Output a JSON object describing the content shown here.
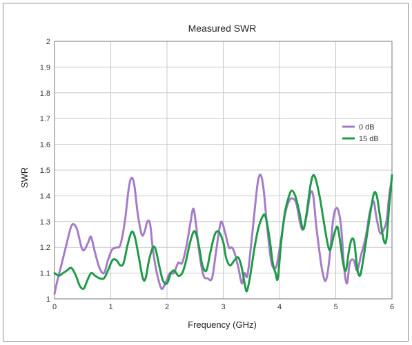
{
  "chart_data": {
    "type": "line",
    "title": "Measured SWR",
    "xlabel": "Frequency (GHz)",
    "ylabel": "SWR",
    "xlim": [
      0,
      6
    ],
    "ylim": [
      1,
      2
    ],
    "xticks": [
      "0",
      "1",
      "2",
      "3",
      "4",
      "5",
      "6"
    ],
    "yticks": [
      "1",
      "1.1",
      "1.2",
      "1.3",
      "1.4",
      "1.5",
      "1.6",
      "1.7",
      "1.8",
      "1.9",
      "2"
    ],
    "grid": true,
    "legend_position": "right",
    "series": [
      {
        "name": "0 dB",
        "color": "#a57cc6",
        "points": [
          [
            0.0,
            1.02
          ],
          [
            0.05,
            1.07
          ],
          [
            0.12,
            1.13
          ],
          [
            0.2,
            1.2
          ],
          [
            0.28,
            1.27
          ],
          [
            0.33,
            1.29
          ],
          [
            0.4,
            1.27
          ],
          [
            0.48,
            1.2
          ],
          [
            0.53,
            1.19
          ],
          [
            0.6,
            1.22
          ],
          [
            0.65,
            1.24
          ],
          [
            0.72,
            1.18
          ],
          [
            0.8,
            1.12
          ],
          [
            0.88,
            1.1
          ],
          [
            0.95,
            1.15
          ],
          [
            1.02,
            1.19
          ],
          [
            1.1,
            1.2
          ],
          [
            1.17,
            1.21
          ],
          [
            1.25,
            1.3
          ],
          [
            1.32,
            1.43
          ],
          [
            1.37,
            1.47
          ],
          [
            1.42,
            1.44
          ],
          [
            1.48,
            1.33
          ],
          [
            1.55,
            1.25
          ],
          [
            1.6,
            1.26
          ],
          [
            1.65,
            1.3
          ],
          [
            1.7,
            1.29
          ],
          [
            1.75,
            1.19
          ],
          [
            1.82,
            1.1
          ],
          [
            1.9,
            1.04
          ],
          [
            1.97,
            1.06
          ],
          [
            2.05,
            1.1
          ],
          [
            2.12,
            1.1
          ],
          [
            2.2,
            1.14
          ],
          [
            2.27,
            1.14
          ],
          [
            2.35,
            1.21
          ],
          [
            2.42,
            1.3
          ],
          [
            2.47,
            1.35
          ],
          [
            2.52,
            1.28
          ],
          [
            2.58,
            1.17
          ],
          [
            2.65,
            1.09
          ],
          [
            2.72,
            1.08
          ],
          [
            2.8,
            1.08
          ],
          [
            2.87,
            1.18
          ],
          [
            2.93,
            1.27
          ],
          [
            2.97,
            1.3
          ],
          [
            3.03,
            1.26
          ],
          [
            3.1,
            1.2
          ],
          [
            3.15,
            1.2
          ],
          [
            3.2,
            1.18
          ],
          [
            3.27,
            1.12
          ],
          [
            3.33,
            1.06
          ],
          [
            3.38,
            1.1
          ],
          [
            3.43,
            1.09
          ],
          [
            3.5,
            1.22
          ],
          [
            3.57,
            1.37
          ],
          [
            3.62,
            1.46
          ],
          [
            3.67,
            1.48
          ],
          [
            3.72,
            1.42
          ],
          [
            3.78,
            1.28
          ],
          [
            3.85,
            1.15
          ],
          [
            3.9,
            1.12
          ],
          [
            3.95,
            1.13
          ],
          [
            4.02,
            1.22
          ],
          [
            4.1,
            1.33
          ],
          [
            4.17,
            1.38
          ],
          [
            4.23,
            1.39
          ],
          [
            4.3,
            1.37
          ],
          [
            4.37,
            1.29
          ],
          [
            4.42,
            1.27
          ],
          [
            4.48,
            1.32
          ],
          [
            4.55,
            1.41
          ],
          [
            4.6,
            1.4
          ],
          [
            4.65,
            1.29
          ],
          [
            4.7,
            1.2
          ],
          [
            4.76,
            1.11
          ],
          [
            4.82,
            1.07
          ],
          [
            4.88,
            1.14
          ],
          [
            4.95,
            1.3
          ],
          [
            5.0,
            1.35
          ],
          [
            5.05,
            1.34
          ],
          [
            5.1,
            1.27
          ],
          [
            5.15,
            1.12
          ],
          [
            5.2,
            1.06
          ],
          [
            5.25,
            1.14
          ],
          [
            5.32,
            1.15
          ],
          [
            5.38,
            1.11
          ],
          [
            5.45,
            1.17
          ],
          [
            5.5,
            1.21
          ],
          [
            5.55,
            1.26
          ],
          [
            5.6,
            1.33
          ],
          [
            5.67,
            1.38
          ],
          [
            5.72,
            1.32
          ],
          [
            5.78,
            1.26
          ],
          [
            5.83,
            1.26
          ],
          [
            5.9,
            1.3
          ],
          [
            5.95,
            1.4
          ],
          [
            6.0,
            1.47
          ]
        ]
      },
      {
        "name": "15 dB",
        "color": "#1f9a49",
        "points": [
          [
            0.0,
            1.1
          ],
          [
            0.08,
            1.09
          ],
          [
            0.15,
            1.1
          ],
          [
            0.22,
            1.11
          ],
          [
            0.3,
            1.12
          ],
          [
            0.38,
            1.09
          ],
          [
            0.45,
            1.05
          ],
          [
            0.52,
            1.04
          ],
          [
            0.58,
            1.07
          ],
          [
            0.65,
            1.1
          ],
          [
            0.72,
            1.09
          ],
          [
            0.8,
            1.08
          ],
          [
            0.88,
            1.08
          ],
          [
            0.95,
            1.11
          ],
          [
            1.03,
            1.15
          ],
          [
            1.1,
            1.15
          ],
          [
            1.17,
            1.13
          ],
          [
            1.23,
            1.14
          ],
          [
            1.3,
            1.21
          ],
          [
            1.37,
            1.26
          ],
          [
            1.43,
            1.24
          ],
          [
            1.5,
            1.16
          ],
          [
            1.57,
            1.08
          ],
          [
            1.62,
            1.08
          ],
          [
            1.68,
            1.15
          ],
          [
            1.75,
            1.2
          ],
          [
            1.8,
            1.19
          ],
          [
            1.87,
            1.12
          ],
          [
            1.93,
            1.07
          ],
          [
            2.0,
            1.06
          ],
          [
            2.07,
            1.1
          ],
          [
            2.13,
            1.11
          ],
          [
            2.2,
            1.09
          ],
          [
            2.27,
            1.1
          ],
          [
            2.33,
            1.14
          ],
          [
            2.4,
            1.21
          ],
          [
            2.47,
            1.26
          ],
          [
            2.52,
            1.25
          ],
          [
            2.58,
            1.19
          ],
          [
            2.63,
            1.13
          ],
          [
            2.7,
            1.11
          ],
          [
            2.77,
            1.18
          ],
          [
            2.85,
            1.25
          ],
          [
            2.92,
            1.26
          ],
          [
            3.0,
            1.22
          ],
          [
            3.05,
            1.16
          ],
          [
            3.12,
            1.13
          ],
          [
            3.2,
            1.15
          ],
          [
            3.27,
            1.16
          ],
          [
            3.33,
            1.12
          ],
          [
            3.38,
            1.06
          ],
          [
            3.42,
            1.03
          ],
          [
            3.48,
            1.09
          ],
          [
            3.55,
            1.19
          ],
          [
            3.62,
            1.27
          ],
          [
            3.7,
            1.32
          ],
          [
            3.75,
            1.32
          ],
          [
            3.82,
            1.24
          ],
          [
            3.88,
            1.14
          ],
          [
            3.93,
            1.1
          ],
          [
            3.97,
            1.08
          ],
          [
            4.03,
            1.22
          ],
          [
            4.1,
            1.34
          ],
          [
            4.17,
            1.4
          ],
          [
            4.22,
            1.42
          ],
          [
            4.28,
            1.4
          ],
          [
            4.35,
            1.34
          ],
          [
            4.42,
            1.27
          ],
          [
            4.48,
            1.33
          ],
          [
            4.55,
            1.44
          ],
          [
            4.6,
            1.48
          ],
          [
            4.65,
            1.46
          ],
          [
            4.72,
            1.39
          ],
          [
            4.78,
            1.31
          ],
          [
            4.85,
            1.22
          ],
          [
            4.9,
            1.19
          ],
          [
            4.97,
            1.25
          ],
          [
            5.03,
            1.28
          ],
          [
            5.08,
            1.22
          ],
          [
            5.13,
            1.14
          ],
          [
            5.18,
            1.11
          ],
          [
            5.23,
            1.18
          ],
          [
            5.28,
            1.23
          ],
          [
            5.33,
            1.22
          ],
          [
            5.38,
            1.12
          ],
          [
            5.43,
            1.09
          ],
          [
            5.48,
            1.14
          ],
          [
            5.55,
            1.24
          ],
          [
            5.62,
            1.34
          ],
          [
            5.68,
            1.41
          ],
          [
            5.73,
            1.4
          ],
          [
            5.78,
            1.33
          ],
          [
            5.85,
            1.23
          ],
          [
            5.9,
            1.23
          ],
          [
            5.95,
            1.36
          ],
          [
            6.0,
            1.48
          ]
        ]
      }
    ]
  }
}
